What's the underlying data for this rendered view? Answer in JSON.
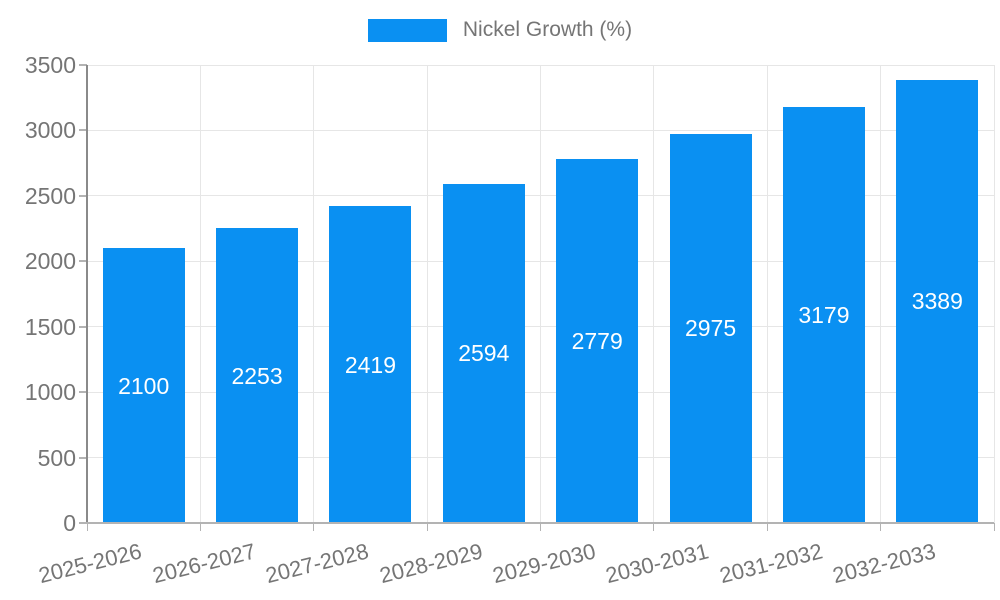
{
  "chart_data": {
    "type": "bar",
    "categories": [
      "2025-2026",
      "2026-2027",
      "2027-2028",
      "2028-2029",
      "2029-2030",
      "2030-2031",
      "2031-2032",
      "2032-2033"
    ],
    "series": [
      {
        "name": "Nickel Growth (%)",
        "values": [
          2100,
          2253,
          2419,
          2594,
          2779,
          2975,
          3179,
          3389
        ]
      }
    ],
    "yticks": [
      0,
      500,
      1000,
      1500,
      2000,
      2500,
      3000,
      3500
    ],
    "ylim": [
      0,
      3500
    ],
    "xlabel": "",
    "ylabel": "",
    "grid": true,
    "legend_position": "top",
    "value_labels": "inside-center",
    "colors": {
      "bar": "#0a90f2",
      "axis_text": "#757575",
      "value_label_text": "#ffffff",
      "gridline": "#e6e6e6",
      "axis_line": "#b3b3b3"
    }
  }
}
